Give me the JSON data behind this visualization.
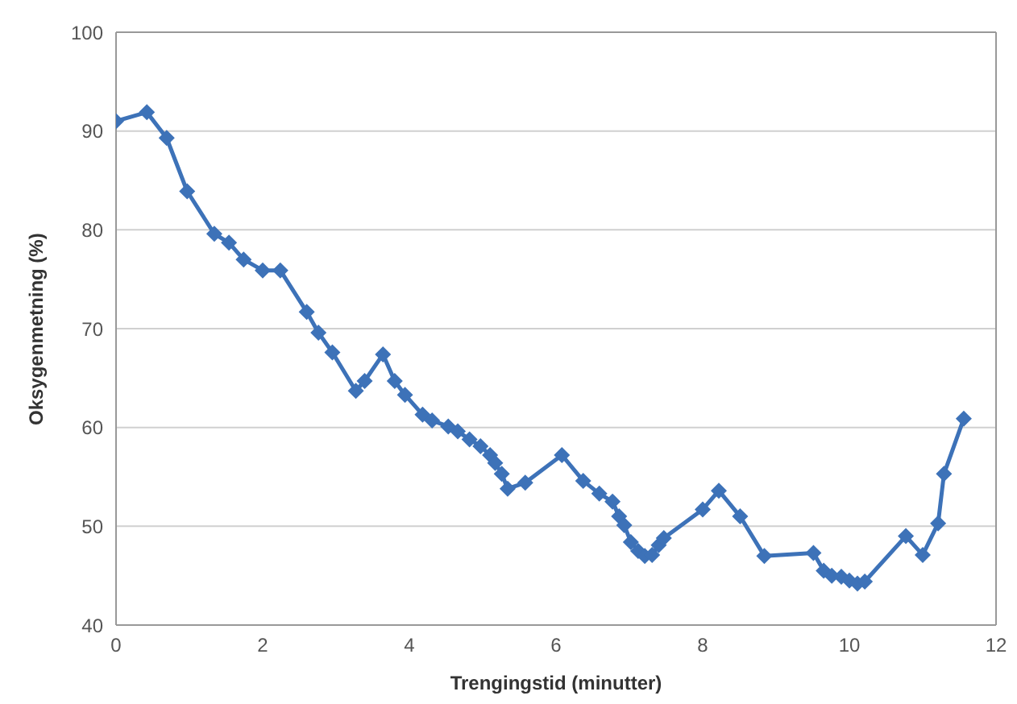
{
  "chart_data": {
    "type": "line",
    "xlabel": "Trengingstid (minutter)",
    "ylabel": "Oksygenmetning (%)",
    "xlim": [
      0,
      12
    ],
    "xticks": [
      0,
      2,
      4,
      6,
      8,
      10,
      12
    ],
    "ylim": [
      40,
      100
    ],
    "yticks": [
      40,
      50,
      60,
      70,
      80,
      90,
      100
    ],
    "grid": "y",
    "marker": "diamond",
    "line_style": "solid",
    "series": [
      {
        "color": "#3d72b8",
        "x": [
          0,
          0.42,
          0.69,
          0.97,
          1.34,
          1.54,
          1.74,
          2.0,
          2.24,
          2.6,
          2.76,
          2.95,
          3.27,
          3.39,
          3.64,
          3.8,
          3.94,
          4.18,
          4.31,
          4.53,
          4.66,
          4.82,
          4.97,
          5.1,
          5.17,
          5.26,
          5.34,
          5.58,
          6.08,
          6.37,
          6.59,
          6.77,
          6.86,
          6.93,
          7.02,
          7.12,
          7.21,
          7.31,
          7.4,
          7.47,
          8.0,
          8.22,
          8.51,
          8.84,
          9.51,
          9.65,
          9.76,
          9.89,
          10.0,
          10.11,
          10.21,
          10.77,
          11.0,
          11.21,
          11.29,
          11.56
        ],
        "values": [
          91.0,
          91.9,
          89.3,
          83.9,
          79.6,
          78.7,
          77.0,
          75.9,
          75.9,
          71.7,
          69.6,
          67.6,
          63.7,
          64.7,
          67.4,
          64.7,
          63.3,
          61.3,
          60.7,
          60.1,
          59.6,
          58.8,
          58.1,
          57.2,
          56.4,
          55.3,
          53.8,
          54.4,
          57.2,
          54.6,
          53.3,
          52.5,
          51.0,
          50.1,
          48.4,
          47.5,
          47.0,
          47.1,
          48.1,
          48.8,
          51.7,
          53.6,
          51.0,
          47.0,
          47.3,
          45.5,
          45.0,
          44.9,
          44.5,
          44.2,
          44.4,
          49.0,
          47.1,
          50.3,
          55.3,
          60.9
        ]
      }
    ]
  }
}
